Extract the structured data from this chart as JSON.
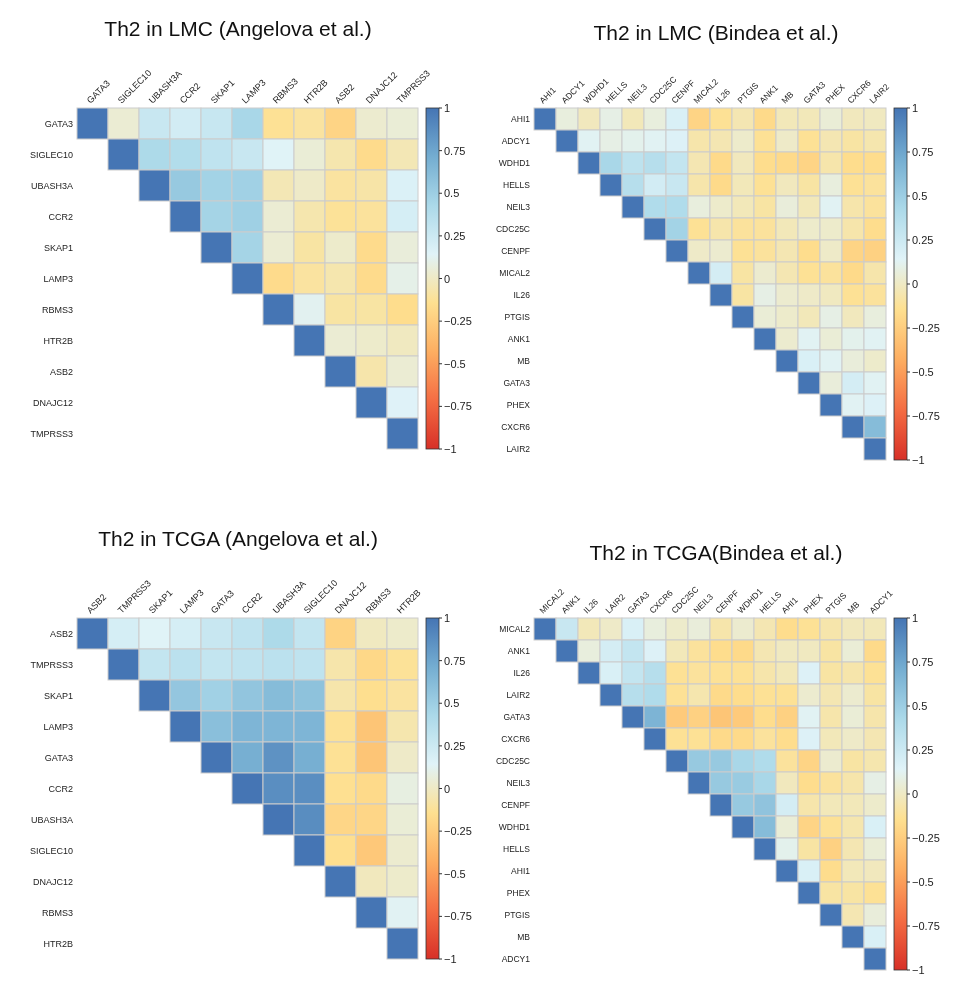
{
  "chart_data": [
    {
      "type": "heatmap",
      "title": "Th2 in LMC (Angelova et al.)",
      "categories": [
        "GATA3",
        "SIGLEC10",
        "UBASH3A",
        "CCR2",
        "SKAP1",
        "LAMP3",
        "RBMS3",
        "HTR2B",
        "ASB2",
        "DNAJC12",
        "TMPRSS3"
      ],
      "y_categories": [
        "GATA3",
        "SIGLEC10",
        "UBASH3A",
        "CCR2",
        "SKAP1",
        "LAMP3",
        "RBMS3",
        "HTR2B",
        "ASB2",
        "DNAJC12",
        "TMPRSS3"
      ],
      "clim": [
        -1,
        1
      ],
      "cticks": [
        -1,
        -0.75,
        -0.5,
        -0.25,
        0,
        0.25,
        0.5,
        0.75,
        1
      ],
      "colors": [
        "#d73027",
        "#f46d43",
        "#fdae61",
        "#fee090",
        "#e0f3f8",
        "#abd9e9",
        "#74add1",
        "#4575b4"
      ],
      "cells": [
        [
          1,
          0.04,
          0.27,
          0.22,
          0.28,
          0.44,
          -0.13,
          -0.1,
          -0.21,
          0.03,
          0.05
        ],
        [
          null,
          1,
          0.42,
          0.39,
          0.32,
          0.27,
          0.14,
          0.05,
          -0.06,
          -0.17,
          -0.04
        ],
        [
          null,
          null,
          1,
          0.53,
          0.47,
          0.48,
          -0.04,
          0.01,
          -0.1,
          -0.08,
          0.17
        ],
        [
          null,
          null,
          null,
          1,
          0.46,
          0.49,
          0.04,
          -0.06,
          -0.12,
          -0.11,
          0.2
        ],
        [
          null,
          null,
          null,
          null,
          1,
          0.46,
          0.04,
          -0.09,
          0.02,
          -0.17,
          0.06
        ],
        [
          null,
          null,
          null,
          null,
          null,
          1,
          -0.17,
          -0.1,
          -0.06,
          -0.17,
          0.1
        ],
        [
          null,
          null,
          null,
          null,
          null,
          null,
          1,
          0.12,
          -0.09,
          -0.09,
          -0.16
        ],
        [
          null,
          null,
          null,
          null,
          null,
          null,
          null,
          1,
          0.04,
          0.02,
          -0.01
        ],
        [
          null,
          null,
          null,
          null,
          null,
          null,
          null,
          null,
          1,
          -0.07,
          0.04
        ],
        [
          null,
          null,
          null,
          null,
          null,
          null,
          null,
          null,
          null,
          1,
          0.15
        ],
        [
          null,
          null,
          null,
          null,
          null,
          null,
          null,
          null,
          null,
          null,
          1
        ]
      ]
    },
    {
      "type": "heatmap",
      "title": "Th2 in LMC (Bindea et al.)",
      "categories": [
        "AHI1",
        "ADCY1",
        "WDHD1",
        "HELLS",
        "NEIL3",
        "CDC25C",
        "CENPF",
        "MICAL2",
        "IL26",
        "PTGIS",
        "ANK1",
        "MB",
        "GATA3",
        "PHEX",
        "CXCR6",
        "LAIR2"
      ],
      "y_categories": [
        "AHI1",
        "ADCY1",
        "WDHD1",
        "HELLS",
        "NEIL3",
        "CDC25C",
        "CENPF",
        "MICAL2",
        "IL26",
        "PTGIS",
        "ANK1",
        "MB",
        "GATA3",
        "PHEX",
        "CXCR6",
        "LAIR2"
      ],
      "clim": [
        -1,
        1
      ],
      "cticks": [
        -1,
        -0.75,
        -0.5,
        -0.25,
        0,
        0.25,
        0.5,
        0.75,
        1
      ],
      "colors": [
        "#d73027",
        "#f46d43",
        "#fdae61",
        "#fee090",
        "#e0f3f8",
        "#abd9e9",
        "#74add1",
        "#4575b4"
      ],
      "cells": [
        [
          1,
          0.07,
          -0.02,
          0.09,
          -0.03,
          0.07,
          0.18,
          -0.21,
          -0.13,
          -0.05,
          -0.18,
          -0.03,
          -0.03,
          0.05,
          -0.02,
          -0.01
        ],
        [
          null,
          1,
          0.13,
          0.09,
          0.11,
          0.13,
          0.16,
          -0.07,
          -0.05,
          0.02,
          -0.13,
          0.01,
          -0.13,
          -0.05,
          -0.09,
          -0.06
        ],
        [
          null,
          null,
          1,
          0.44,
          0.33,
          0.37,
          0.3,
          -0.05,
          -0.18,
          -0.02,
          -0.16,
          -0.18,
          -0.21,
          -0.07,
          -0.16,
          -0.16
        ],
        [
          null,
          null,
          null,
          1,
          0.37,
          0.22,
          0.27,
          -0.07,
          -0.18,
          -0.03,
          -0.13,
          -0.02,
          -0.09,
          0.07,
          -0.13,
          -0.11
        ],
        [
          null,
          null,
          null,
          null,
          1,
          0.4,
          0.4,
          0.07,
          0.02,
          -0.03,
          -0.09,
          0.06,
          -0.03,
          0.13,
          -0.07,
          -0.11
        ],
        [
          null,
          null,
          null,
          null,
          null,
          1,
          0.47,
          -0.13,
          -0.07,
          -0.11,
          -0.11,
          -0.03,
          0.02,
          0.02,
          -0.07,
          -0.16
        ],
        [
          null,
          null,
          null,
          null,
          null,
          null,
          1,
          0.01,
          0.03,
          -0.13,
          -0.11,
          -0.05,
          -0.16,
          0.01,
          -0.21,
          -0.23
        ],
        [
          null,
          null,
          null,
          null,
          null,
          null,
          null,
          1,
          0.21,
          -0.09,
          0.03,
          -0.05,
          -0.13,
          -0.11,
          -0.18,
          -0.07
        ],
        [
          null,
          null,
          null,
          null,
          null,
          null,
          null,
          null,
          1,
          -0.09,
          0.09,
          0.03,
          0.01,
          -0.01,
          -0.13,
          -0.11
        ],
        [
          null,
          null,
          null,
          null,
          null,
          null,
          null,
          null,
          null,
          1,
          0.05,
          0.02,
          -0.03,
          0.09,
          -0.02,
          0.07
        ],
        [
          null,
          null,
          null,
          null,
          null,
          null,
          null,
          null,
          null,
          null,
          1,
          0.03,
          0.13,
          0.05,
          0.11,
          0.13
        ],
        [
          null,
          null,
          null,
          null,
          null,
          null,
          null,
          null,
          null,
          null,
          null,
          1,
          0.18,
          0.13,
          0.06,
          0.02
        ],
        [
          null,
          null,
          null,
          null,
          null,
          null,
          null,
          null,
          null,
          null,
          null,
          null,
          1,
          0.06,
          0.21,
          0.13
        ],
        [
          null,
          null,
          null,
          null,
          null,
          null,
          null,
          null,
          null,
          null,
          null,
          null,
          null,
          1,
          0.13,
          0.16
        ],
        [
          null,
          null,
          null,
          null,
          null,
          null,
          null,
          null,
          null,
          null,
          null,
          null,
          null,
          null,
          1,
          0.62
        ],
        [
          null,
          null,
          null,
          null,
          null,
          null,
          null,
          null,
          null,
          null,
          null,
          null,
          null,
          null,
          null,
          1
        ]
      ]
    },
    {
      "type": "heatmap",
      "title": "Th2 in TCGA (Angelova et al.)",
      "categories": [
        "ASB2",
        "TMPRSS3",
        "SKAP1",
        "LAMP3",
        "GATA3",
        "CCR2",
        "UBASH3A",
        "SIGLEC10",
        "DNAJC12",
        "RBMS3",
        "HTR2B"
      ],
      "y_categories": [
        "ASB2",
        "TMPRSS3",
        "SKAP1",
        "LAMP3",
        "GATA3",
        "CCR2",
        "UBASH3A",
        "SIGLEC10",
        "DNAJC12",
        "RBMS3",
        "HTR2B"
      ],
      "clim": [
        -1,
        1
      ],
      "cticks": [
        -1,
        -0.75,
        -0.5,
        -0.25,
        0,
        0.25,
        0.5,
        0.75,
        1
      ],
      "colors": [
        "#d73027",
        "#f46d43",
        "#fdae61",
        "#fee090",
        "#e0f3f8",
        "#abd9e9",
        "#74add1",
        "#4575b4"
      ],
      "cells": [
        [
          1,
          0.2,
          0.14,
          0.2,
          0.27,
          0.32,
          0.42,
          0.3,
          -0.22,
          -0.01,
          0.02
        ],
        [
          null,
          1,
          0.3,
          0.34,
          0.3,
          0.32,
          0.34,
          0.32,
          -0.07,
          -0.19,
          -0.12
        ],
        [
          null,
          null,
          1,
          0.55,
          0.48,
          0.56,
          0.62,
          0.58,
          -0.07,
          -0.15,
          -0.1
        ],
        [
          null,
          null,
          null,
          1,
          0.6,
          0.66,
          0.66,
          0.66,
          -0.13,
          -0.3,
          -0.06
        ],
        [
          null,
          null,
          null,
          null,
          1,
          0.7,
          0.85,
          0.7,
          -0.13,
          -0.3,
          0.01
        ],
        [
          null,
          null,
          null,
          null,
          null,
          1,
          0.87,
          0.87,
          -0.14,
          -0.18,
          0.08
        ],
        [
          null,
          null,
          null,
          null,
          null,
          null,
          1,
          0.88,
          -0.2,
          -0.2,
          0.05
        ],
        [
          null,
          null,
          null,
          null,
          null,
          null,
          null,
          1,
          -0.15,
          -0.28,
          0.03
        ],
        [
          null,
          null,
          null,
          null,
          null,
          null,
          null,
          null,
          1,
          -0.02,
          0.02
        ],
        [
          null,
          null,
          null,
          null,
          null,
          null,
          null,
          null,
          null,
          1,
          0.13
        ],
        [
          null,
          null,
          null,
          null,
          null,
          null,
          null,
          null,
          null,
          null,
          1
        ]
      ]
    },
    {
      "type": "heatmap",
      "title": "Th2 in TCGA(Bindea et al.)",
      "categories": [
        "MICAL2",
        "ANK1",
        "IL26",
        "LAIR2",
        "GATA3",
        "CXCR6",
        "CDC25C",
        "NEIL3",
        "CENPF",
        "WDHD1",
        "HELLS",
        "AHI1",
        "PHEX",
        "PTGIS",
        "MB",
        "ADCY1"
      ],
      "y_categories": [
        "MICAL2",
        "ANK1",
        "IL26",
        "LAIR2",
        "GATA3",
        "CXCR6",
        "CDC25C",
        "NEIL3",
        "CENPF",
        "WDHD1",
        "HELLS",
        "AHI1",
        "PHEX",
        "PTGIS",
        "MB",
        "ADCY1"
      ],
      "clim": [
        -1,
        1
      ],
      "cticks": [
        -1,
        -0.75,
        -0.5,
        -0.25,
        0,
        0.25,
        0.5,
        0.75,
        1
      ],
      "colors": [
        "#d73027",
        "#f46d43",
        "#fdae61",
        "#fee090",
        "#e0f3f8",
        "#abd9e9",
        "#74add1",
        "#4575b4"
      ],
      "cells": [
        [
          1,
          0.27,
          -0.03,
          0.01,
          0.18,
          0.07,
          0.02,
          0.06,
          -0.07,
          0.03,
          -0.05,
          -0.16,
          -0.13,
          -0.07,
          -0.02,
          -0.03
        ],
        [
          null,
          1,
          0.07,
          0.21,
          0.3,
          0.16,
          -0.03,
          -0.11,
          -0.16,
          -0.18,
          -0.05,
          -0.01,
          -0.01,
          -0.09,
          0.05,
          -0.18
        ],
        [
          null,
          null,
          1,
          0.18,
          0.3,
          0.37,
          -0.13,
          -0.11,
          -0.13,
          -0.13,
          -0.07,
          -0.03,
          0.16,
          -0.09,
          -0.07,
          -0.13
        ],
        [
          null,
          null,
          null,
          1,
          0.37,
          0.4,
          -0.13,
          -0.06,
          -0.18,
          -0.16,
          -0.13,
          -0.13,
          0.03,
          -0.05,
          0.03,
          -0.09
        ],
        [
          null,
          null,
          null,
          null,
          1,
          0.67,
          -0.27,
          -0.23,
          -0.3,
          -0.27,
          -0.16,
          -0.23,
          0.13,
          -0.07,
          0.05,
          -0.07
        ],
        [
          null,
          null,
          null,
          null,
          null,
          1,
          -0.13,
          -0.13,
          -0.18,
          -0.18,
          -0.11,
          -0.16,
          0.16,
          -0.03,
          0.01,
          -0.05
        ],
        [
          null,
          null,
          null,
          null,
          null,
          null,
          1,
          0.53,
          0.53,
          0.44,
          0.4,
          -0.11,
          -0.21,
          0.03,
          -0.09,
          -0.06
        ],
        [
          null,
          null,
          null,
          null,
          null,
          null,
          null,
          1,
          0.53,
          0.52,
          0.44,
          -0.02,
          -0.16,
          -0.11,
          -0.07,
          0.09
        ],
        [
          null,
          null,
          null,
          null,
          null,
          null,
          null,
          null,
          1,
          0.53,
          0.57,
          0.21,
          -0.07,
          -0.03,
          -0.03,
          0.02
        ],
        [
          null,
          null,
          null,
          null,
          null,
          null,
          null,
          null,
          null,
          1,
          0.62,
          0.05,
          -0.21,
          -0.13,
          -0.06,
          0.18
        ],
        [
          null,
          null,
          null,
          null,
          null,
          null,
          null,
          null,
          null,
          null,
          1,
          0.11,
          -0.09,
          -0.23,
          -0.05,
          0.05
        ],
        [
          null,
          null,
          null,
          null,
          null,
          null,
          null,
          null,
          null,
          null,
          null,
          1,
          0.18,
          -0.16,
          -0.03,
          -0.02
        ],
        [
          null,
          null,
          null,
          null,
          null,
          null,
          null,
          null,
          null,
          null,
          null,
          null,
          1,
          -0.09,
          -0.09,
          -0.13
        ],
        [
          null,
          null,
          null,
          null,
          null,
          null,
          null,
          null,
          null,
          null,
          null,
          null,
          null,
          1,
          -0.05,
          0.06
        ],
        [
          null,
          null,
          null,
          null,
          null,
          null,
          null,
          null,
          null,
          null,
          null,
          null,
          null,
          null,
          1,
          0.18
        ],
        [
          null,
          null,
          null,
          null,
          null,
          null,
          null,
          null,
          null,
          null,
          null,
          null,
          null,
          null,
          null,
          1
        ]
      ]
    }
  ]
}
